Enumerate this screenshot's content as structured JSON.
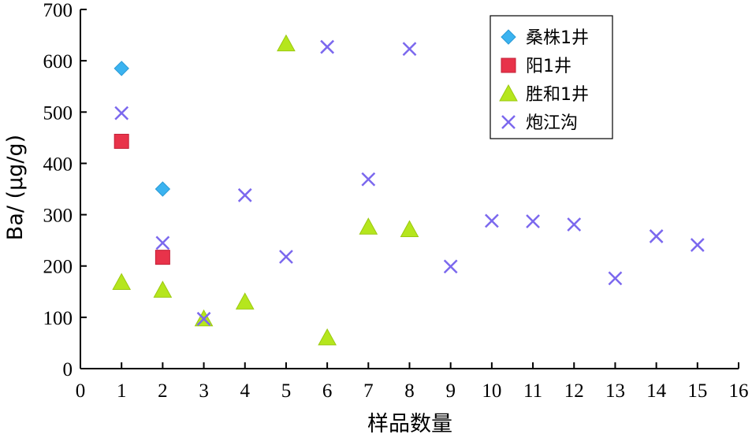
{
  "chart_data": {
    "type": "scatter",
    "xlabel": "样品数量",
    "ylabel": "Ba/ (μg/g)",
    "xlim": [
      0,
      16
    ],
    "ylim": [
      0,
      700
    ],
    "xticks": [
      "0",
      "1",
      "2",
      "3",
      "4",
      "5",
      "6",
      "7",
      "8",
      "9",
      "10",
      "11",
      "12",
      "13",
      "14",
      "15",
      "16"
    ],
    "yticks": [
      "0",
      "100",
      "200",
      "300",
      "400",
      "500",
      "600",
      "700"
    ],
    "grid": false,
    "legend_position": "top-right",
    "series": [
      {
        "name": "桑株1井",
        "marker": "diamond",
        "color": "#3BB3F0",
        "points": [
          [
            1,
            585
          ],
          [
            2,
            350
          ]
        ]
      },
      {
        "name": "阳1井",
        "marker": "square",
        "color": "#E8334A",
        "points": [
          [
            1,
            443
          ],
          [
            2,
            217
          ]
        ]
      },
      {
        "name": "胜和1井",
        "marker": "triangle",
        "color": "#B5E61D",
        "points": [
          [
            1,
            168
          ],
          [
            2,
            153
          ],
          [
            3,
            97
          ],
          [
            4,
            130
          ],
          [
            5,
            633
          ],
          [
            6,
            60
          ],
          [
            7,
            276
          ],
          [
            8,
            271
          ]
        ]
      },
      {
        "name": "炮江沟",
        "marker": "x",
        "color": "#7B68EE",
        "points": [
          [
            1,
            498
          ],
          [
            2,
            245
          ],
          [
            3,
            97
          ],
          [
            4,
            338
          ],
          [
            5,
            218
          ],
          [
            6,
            627
          ],
          [
            7,
            369
          ],
          [
            8,
            623
          ],
          [
            9,
            199
          ],
          [
            10,
            288
          ],
          [
            11,
            287
          ],
          [
            12,
            281
          ],
          [
            13,
            176
          ],
          [
            14,
            258
          ],
          [
            15,
            241
          ]
        ]
      }
    ]
  }
}
